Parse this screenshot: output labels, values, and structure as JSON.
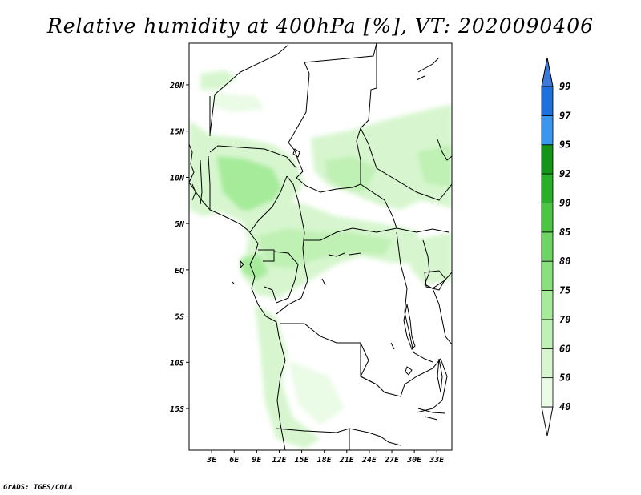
{
  "title": "Relative humidity at 400hPa [%], VT: 2020090406",
  "credit": "GrADS: IGES/COLA",
  "map": {
    "lon_range": [
      0,
      35
    ],
    "lat_range": [
      -19.5,
      24.5
    ],
    "lon_ticks": [
      "3E",
      "6E",
      "9E",
      "12E",
      "15E",
      "18E",
      "21E",
      "24E",
      "27E",
      "30E",
      "33E"
    ],
    "lon_tick_values": [
      3,
      6,
      9,
      12,
      15,
      18,
      21,
      24,
      27,
      30,
      33
    ],
    "lat_ticks": [
      "20N",
      "15N",
      "10N",
      "5N",
      "EQ",
      "5S",
      "10S",
      "15S"
    ],
    "lat_tick_values": [
      20,
      15,
      10,
      5,
      0,
      -5,
      -10,
      -15
    ]
  },
  "colorbar": {
    "levels": [
      "40",
      "50",
      "60",
      "70",
      "75",
      "80",
      "85",
      "90",
      "92",
      "95",
      "97",
      "99"
    ],
    "colors": [
      "#ffffff",
      "#eafbe6",
      "#d7f6cf",
      "#bff0b4",
      "#a5eb9a",
      "#8be07e",
      "#6fd463",
      "#4cc445",
      "#2aae2b",
      "#159419",
      "#3d96ee",
      "#1f6fdc",
      "#3b7ad9"
    ]
  }
}
